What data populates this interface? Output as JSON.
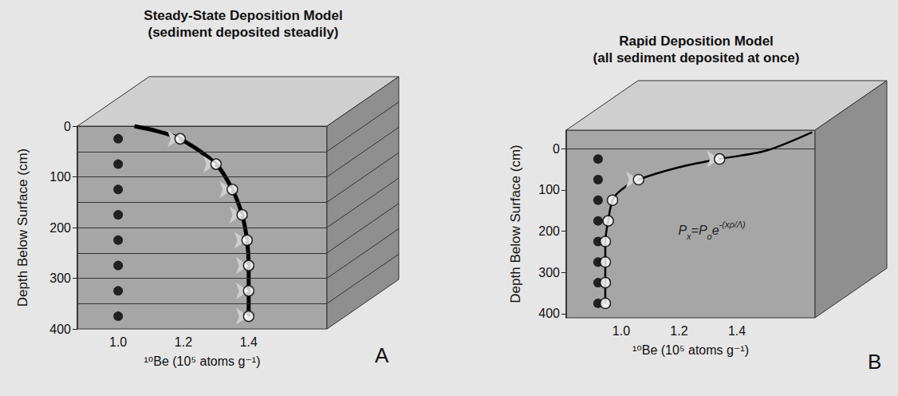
{
  "chart_data": [
    {
      "type": "scatter",
      "title": "Steady-State Deposition Model",
      "subtitle": "(sediment deposited steadily)",
      "x_label": "¹⁰Be (10⁵ atoms g⁻¹)",
      "y_label": "Depth Below Surface (cm)",
      "xlim": [
        0.875,
        1.64
      ],
      "ylim": [
        0,
        400
      ],
      "xticks": [
        {
          "value": 1,
          "label": "1.0"
        },
        1.2,
        1.4
      ],
      "yticks": [
        0,
        100,
        200,
        300,
        400
      ],
      "grid": false,
      "layers": [
        50,
        100,
        150,
        200,
        250,
        300,
        350
      ],
      "series": [
        {
          "type": "line",
          "color": "#000000",
          "line_style": "bold",
          "x": [
            1.05,
            1.12,
            1.19,
            1.3,
            1.35,
            1.38,
            1.395,
            1.4,
            1.4,
            1.4
          ],
          "y": [
            0,
            10,
            25,
            75,
            125,
            175,
            225,
            275,
            325,
            375
          ]
        },
        {
          "type": "scatter",
          "marker": "filled",
          "color": "#000000",
          "x": [
            1.0,
            1.0,
            1.0,
            1.0,
            1.0,
            1.0,
            1.0,
            1.0
          ],
          "y": [
            25,
            75,
            125,
            175,
            225,
            275,
            325,
            375
          ]
        },
        {
          "type": "scatter",
          "marker": "open",
          "color": "#000000",
          "x": [
            1.19,
            1.3,
            1.35,
            1.38,
            1.395,
            1.4,
            1.4,
            1.4
          ],
          "y": [
            25,
            75,
            125,
            175,
            225,
            275,
            325,
            375
          ]
        }
      ],
      "arrows": {
        "color": "#cfcfcf",
        "y": [
          25,
          75,
          125,
          175,
          225,
          275,
          325,
          375
        ]
      },
      "panel_label": "A"
    },
    {
      "type": "scatter",
      "title": "Rapid Deposition Model",
      "subtitle": "(all sediment deposited at once)",
      "x_label": "¹⁰Be (10⁵ atoms g⁻¹)",
      "y_label": "Depth Below Surface (cm)",
      "xlim": [
        0.81,
        1.67
      ],
      "ylim": [
        -45,
        410
      ],
      "xticks": [
        {
          "value": 1,
          "label": "1.0"
        },
        1.2,
        1.4
      ],
      "yticks": [
        0,
        100,
        200,
        300,
        400
      ],
      "grid": false,
      "series": [
        {
          "type": "line",
          "color": "#000000",
          "line_style": "solid",
          "x": [
            1.66,
            1.5,
            1.34,
            1.2,
            1.06,
            1.0,
            0.97,
            0.955,
            0.945,
            0.945
          ],
          "y": [
            -40,
            5,
            25,
            45,
            75,
            100,
            125,
            175,
            225,
            375
          ]
        },
        {
          "type": "scatter",
          "marker": "filled",
          "color": "#000000",
          "x": [
            0.92,
            0.92,
            0.92,
            0.92,
            0.92,
            0.92,
            0.92,
            0.92
          ],
          "y": [
            25,
            75,
            125,
            175,
            225,
            275,
            325,
            375
          ]
        },
        {
          "type": "scatter",
          "marker": "open",
          "color": "#000000",
          "x": [
            1.34,
            1.06,
            0.97,
            0.955,
            0.945,
            0.945,
            0.945,
            0.945
          ],
          "y": [
            25,
            75,
            125,
            175,
            225,
            275,
            325,
            375
          ]
        }
      ],
      "arrows": {
        "color": "#cfcfcf",
        "y": [
          25,
          75
        ]
      },
      "annotations": [
        {
          "parts": [
            {
              "text": "P",
              "style": "normal"
            },
            {
              "text": "x",
              "style": "sub"
            },
            {
              "text": "=P",
              "style": "normal"
            },
            {
              "text": "o",
              "style": "sub"
            },
            {
              "text": "e",
              "style": "normal"
            },
            {
              "text": "-(xρ/Λ)",
              "style": "sup"
            }
          ]
        }
      ],
      "panel_label": "B"
    }
  ]
}
